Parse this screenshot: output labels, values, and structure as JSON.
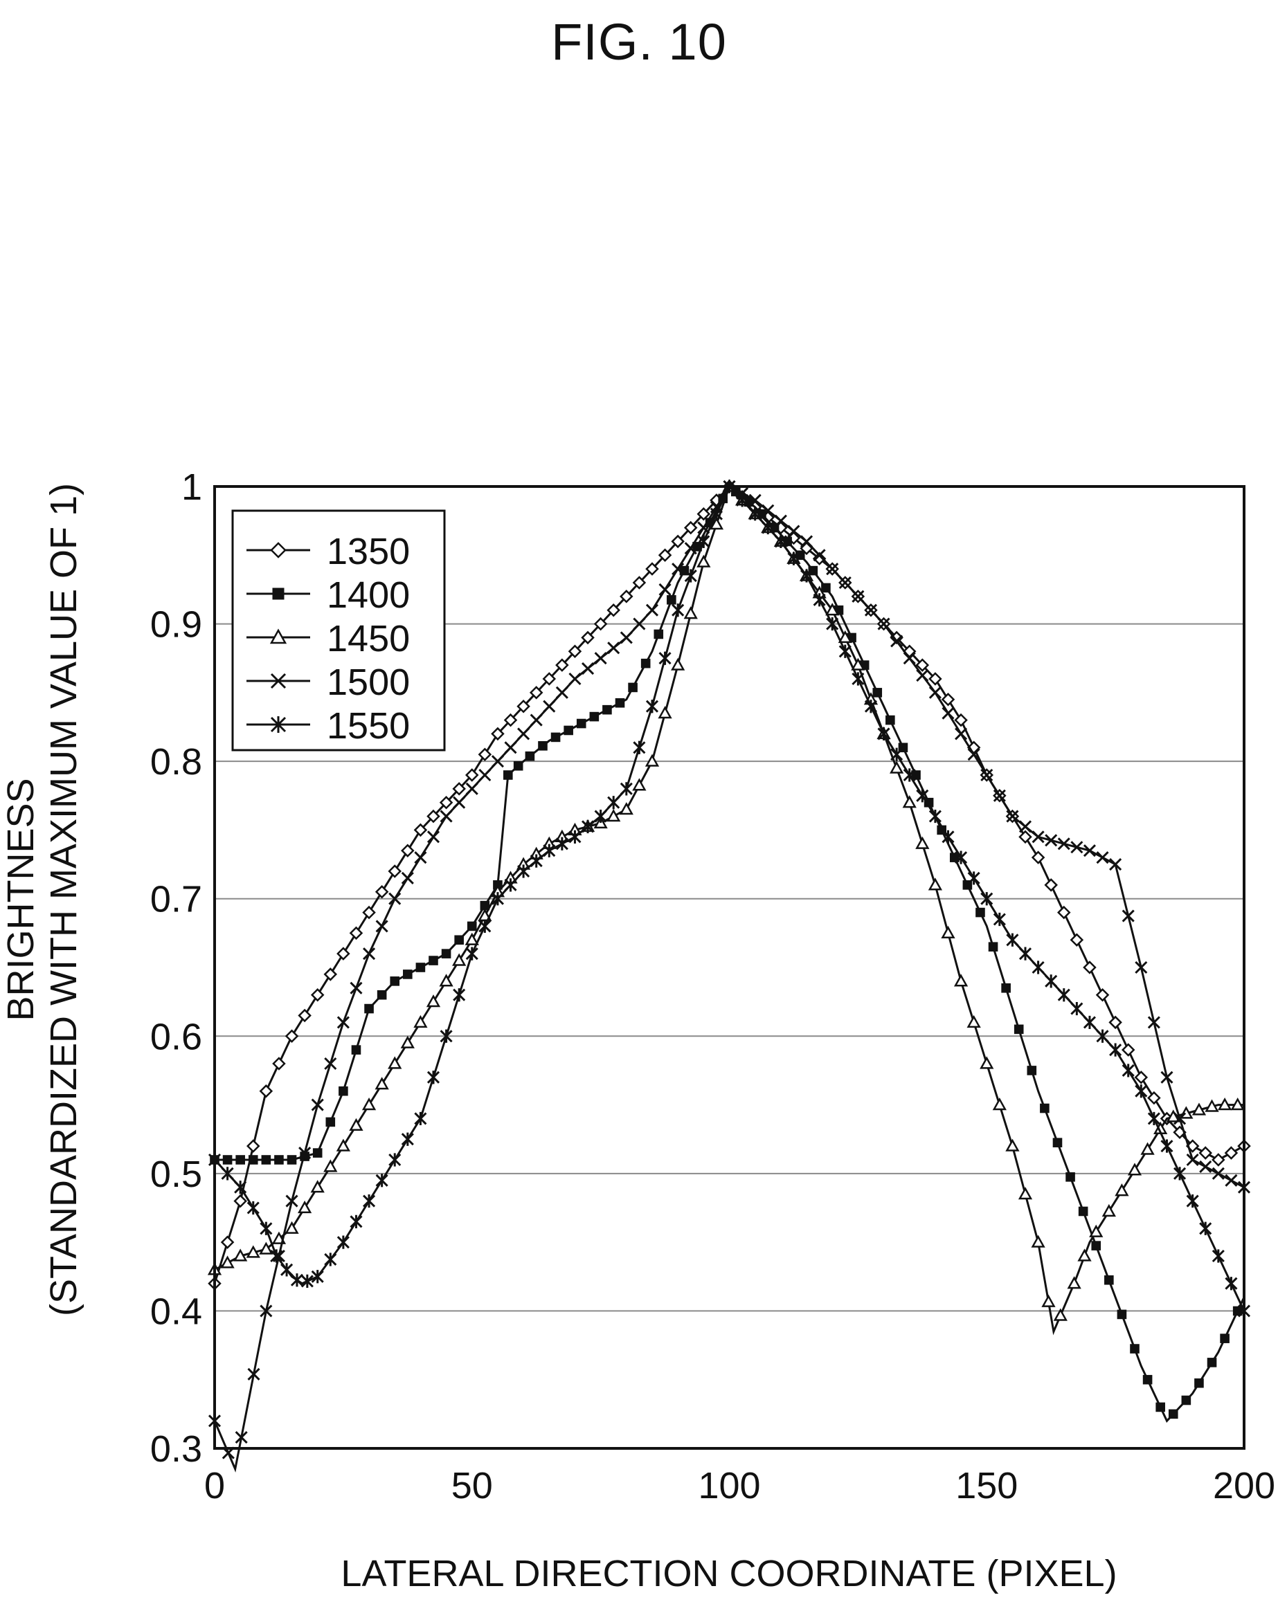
{
  "figure_label": "FIG. 10",
  "chart_data": {
    "type": "line",
    "title": "",
    "xlabel": "LATERAL DIRECTION COORDINATE (PIXEL)",
    "ylabel_line1": "BRIGHTNESS",
    "ylabel_line2": "(STANDARDIZED WITH MAXIMUM VALUE OF 1)",
    "xlim": [
      0,
      200
    ],
    "ylim": [
      0.3,
      1
    ],
    "xticks": [
      0,
      50,
      100,
      150,
      200
    ],
    "xtick_labels": [
      "0",
      "50",
      "100",
      "150",
      "200"
    ],
    "yticks": [
      0.3,
      0.4,
      0.5,
      0.6,
      0.7,
      0.8,
      0.9,
      1
    ],
    "ytick_labels": [
      "0.3",
      "0.4",
      "0.5",
      "0.6",
      "0.7",
      "0.8",
      "0.9",
      "1"
    ],
    "grid": "horizontal",
    "legend_position": "top-left",
    "series": [
      {
        "name": "1350",
        "marker": "diamond-open",
        "x": [
          0,
          5,
          10,
          15,
          20,
          25,
          30,
          35,
          40,
          45,
          50,
          55,
          60,
          65,
          70,
          75,
          80,
          85,
          90,
          95,
          100,
          105,
          110,
          115,
          120,
          125,
          130,
          135,
          140,
          145,
          150,
          155,
          160,
          165,
          170,
          175,
          180,
          185,
          190,
          195,
          200
        ],
        "y": [
          0.42,
          0.48,
          0.56,
          0.6,
          0.63,
          0.66,
          0.69,
          0.72,
          0.75,
          0.77,
          0.79,
          0.82,
          0.84,
          0.86,
          0.88,
          0.9,
          0.92,
          0.94,
          0.96,
          0.98,
          1.0,
          0.985,
          0.97,
          0.955,
          0.94,
          0.92,
          0.9,
          0.88,
          0.86,
          0.83,
          0.79,
          0.76,
          0.73,
          0.69,
          0.65,
          0.61,
          0.57,
          0.54,
          0.52,
          0.51,
          0.52
        ]
      },
      {
        "name": "1400",
        "marker": "square-filled",
        "x": [
          0,
          5,
          10,
          15,
          20,
          25,
          30,
          35,
          40,
          45,
          50,
          55,
          57,
          60,
          65,
          70,
          75,
          80,
          85,
          90,
          95,
          100,
          105,
          110,
          115,
          120,
          125,
          130,
          135,
          140,
          145,
          150,
          155,
          160,
          165,
          170,
          175,
          180,
          185,
          190,
          195,
          200
        ],
        "y": [
          0.51,
          0.51,
          0.51,
          0.51,
          0.515,
          0.56,
          0.62,
          0.64,
          0.65,
          0.66,
          0.68,
          0.71,
          0.79,
          0.8,
          0.815,
          0.825,
          0.835,
          0.845,
          0.88,
          0.93,
          0.965,
          1.0,
          0.985,
          0.965,
          0.945,
          0.92,
          0.88,
          0.84,
          0.8,
          0.76,
          0.72,
          0.68,
          0.62,
          0.56,
          0.51,
          0.46,
          0.41,
          0.36,
          0.32,
          0.34,
          0.37,
          0.41
        ]
      },
      {
        "name": "1450",
        "marker": "triangle-open",
        "x": [
          0,
          5,
          10,
          15,
          20,
          25,
          30,
          35,
          40,
          45,
          50,
          55,
          60,
          65,
          70,
          75,
          80,
          85,
          90,
          95,
          100,
          105,
          110,
          115,
          120,
          125,
          130,
          135,
          140,
          145,
          150,
          155,
          160,
          163,
          167,
          170,
          175,
          180,
          185,
          190,
          195,
          200
        ],
        "y": [
          0.43,
          0.44,
          0.445,
          0.46,
          0.49,
          0.52,
          0.55,
          0.58,
          0.61,
          0.64,
          0.67,
          0.705,
          0.725,
          0.74,
          0.75,
          0.755,
          0.765,
          0.8,
          0.87,
          0.945,
          1.0,
          0.98,
          0.96,
          0.935,
          0.91,
          0.87,
          0.82,
          0.77,
          0.71,
          0.64,
          0.58,
          0.52,
          0.45,
          0.385,
          0.42,
          0.45,
          0.48,
          0.51,
          0.54,
          0.545,
          0.55,
          0.55
        ]
      },
      {
        "name": "1500",
        "marker": "x",
        "x": [
          0,
          4,
          10,
          15,
          20,
          25,
          30,
          35,
          40,
          45,
          50,
          55,
          60,
          65,
          70,
          75,
          80,
          85,
          90,
          95,
          100,
          105,
          110,
          115,
          120,
          125,
          130,
          135,
          140,
          145,
          150,
          155,
          160,
          165,
          170,
          175,
          180,
          185,
          190,
          195,
          200
        ],
        "y": [
          0.32,
          0.285,
          0.4,
          0.48,
          0.55,
          0.61,
          0.66,
          0.7,
          0.73,
          0.76,
          0.78,
          0.8,
          0.82,
          0.84,
          0.86,
          0.875,
          0.89,
          0.91,
          0.94,
          0.97,
          1.0,
          0.99,
          0.975,
          0.96,
          0.94,
          0.92,
          0.9,
          0.875,
          0.85,
          0.82,
          0.79,
          0.76,
          0.745,
          0.74,
          0.735,
          0.725,
          0.65,
          0.57,
          0.51,
          0.5,
          0.49
        ]
      },
      {
        "name": "1550",
        "marker": "asterisk",
        "x": [
          0,
          5,
          10,
          12,
          15,
          17,
          20,
          25,
          30,
          35,
          40,
          45,
          50,
          55,
          60,
          65,
          70,
          75,
          80,
          85,
          90,
          95,
          100,
          105,
          110,
          115,
          120,
          125,
          130,
          135,
          140,
          145,
          150,
          155,
          160,
          165,
          170,
          175,
          180,
          185,
          190,
          195,
          200
        ],
        "y": [
          0.51,
          0.49,
          0.46,
          0.44,
          0.425,
          0.42,
          0.425,
          0.45,
          0.48,
          0.51,
          0.54,
          0.6,
          0.66,
          0.7,
          0.72,
          0.735,
          0.745,
          0.76,
          0.78,
          0.84,
          0.91,
          0.96,
          1.0,
          0.98,
          0.96,
          0.935,
          0.9,
          0.86,
          0.82,
          0.79,
          0.76,
          0.73,
          0.7,
          0.67,
          0.65,
          0.63,
          0.61,
          0.59,
          0.56,
          0.52,
          0.48,
          0.44,
          0.4
        ]
      }
    ]
  }
}
